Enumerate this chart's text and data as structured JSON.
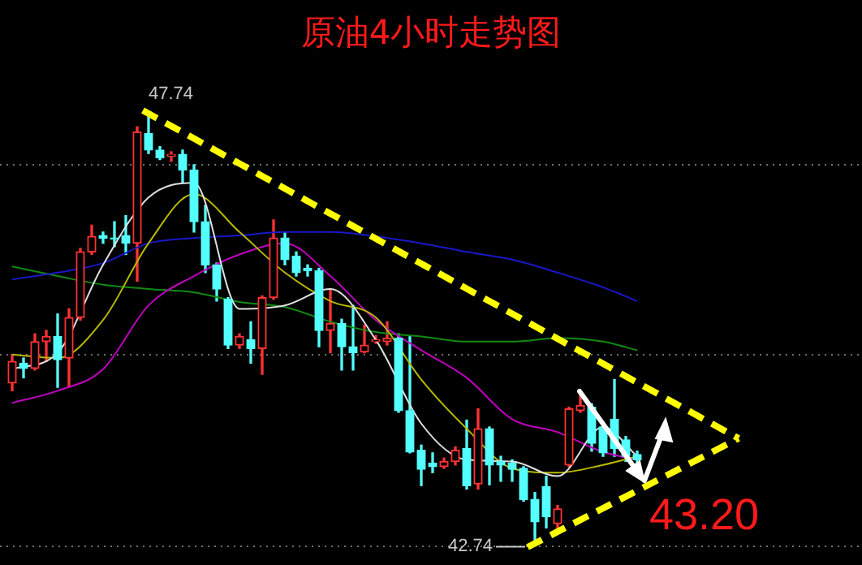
{
  "chart_data": {
    "type": "candlestick",
    "title": "原油4小时走势图",
    "categories": [
      null,
      null,
      null,
      null,
      null,
      null,
      null,
      null,
      null,
      null,
      null,
      null,
      null,
      null,
      null,
      null,
      null,
      null,
      null,
      null,
      null,
      null,
      null,
      null,
      null,
      null,
      null,
      null,
      null,
      null,
      null,
      null,
      null,
      null,
      null,
      null,
      null,
      null,
      null,
      null,
      null,
      null,
      null,
      null,
      null,
      null,
      null,
      null,
      null,
      null,
      null,
      null,
      null,
      null,
      null,
      null
    ],
    "ohlc": [
      [
        44.6,
        44.93,
        44.51,
        44.85
      ],
      [
        44.83,
        44.89,
        44.66,
        44.77
      ],
      [
        44.77,
        45.17,
        44.75,
        45.08
      ],
      [
        45.08,
        45.21,
        44.85,
        45.14
      ],
      [
        45.14,
        45.4,
        44.55,
        44.87
      ],
      [
        44.89,
        45.46,
        44.55,
        45.36
      ],
      [
        45.36,
        46.16,
        45.33,
        46.12
      ],
      [
        46.12,
        46.43,
        46.09,
        46.3
      ],
      [
        46.31,
        46.35,
        46.22,
        46.28
      ],
      [
        46.28,
        46.47,
        46.18,
        46.27
      ],
      [
        46.31,
        46.54,
        46.09,
        46.22
      ],
      [
        46.22,
        47.57,
        45.78,
        47.51
      ],
      [
        47.49,
        47.74,
        47.26,
        47.3
      ],
      [
        47.3,
        47.34,
        47.19,
        47.21
      ],
      [
        47.23,
        47.28,
        47.17,
        47.25
      ],
      [
        47.25,
        47.3,
        46.92,
        47.07
      ],
      [
        47.07,
        47.13,
        46.35,
        46.47
      ],
      [
        46.47,
        46.66,
        45.88,
        45.97
      ],
      [
        45.97,
        45.99,
        45.55,
        45.69
      ],
      [
        45.57,
        45.59,
        45.0,
        45.04
      ],
      [
        45.04,
        45.17,
        45.0,
        45.14
      ],
      [
        45.1,
        45.31,
        44.83,
        45.0
      ],
      [
        45.0,
        45.61,
        44.7,
        45.59
      ],
      [
        45.59,
        46.49,
        45.57,
        46.28
      ],
      [
        46.28,
        46.35,
        45.97,
        46.03
      ],
      [
        46.07,
        46.12,
        45.84,
        45.88
      ],
      [
        45.93,
        45.97,
        45.84,
        45.9
      ],
      [
        45.9,
        45.93,
        45.02,
        45.21
      ],
      [
        45.21,
        45.69,
        44.95,
        45.29
      ],
      [
        45.29,
        45.34,
        44.75,
        45.02
      ],
      [
        45.02,
        45.5,
        44.75,
        44.95
      ],
      [
        44.96,
        45.27,
        44.95,
        45.04
      ],
      [
        45.08,
        45.15,
        45.06,
        45.1
      ],
      [
        45.08,
        45.31,
        45.04,
        45.12
      ],
      [
        45.12,
        45.17,
        44.26,
        44.28
      ],
      [
        44.28,
        45.14,
        43.79,
        43.8
      ],
      [
        43.82,
        43.88,
        43.41,
        43.6
      ],
      [
        43.67,
        43.79,
        43.56,
        43.63
      ],
      [
        43.63,
        43.73,
        43.61,
        43.69
      ],
      [
        43.69,
        43.86,
        43.65,
        43.82
      ],
      [
        43.84,
        44.17,
        43.37,
        43.41
      ],
      [
        43.43,
        44.3,
        43.37,
        44.07
      ],
      [
        44.07,
        44.09,
        43.42,
        43.65
      ],
      [
        43.69,
        43.75,
        43.46,
        43.65
      ],
      [
        43.67,
        43.71,
        43.46,
        43.6
      ],
      [
        43.61,
        43.63,
        43.23,
        43.25
      ],
      [
        43.25,
        43.33,
        42.74,
        42.99
      ],
      [
        43.4,
        43.52,
        42.92,
        43.05
      ],
      [
        42.97,
        43.18,
        42.86,
        43.14
      ],
      [
        43.65,
        44.32,
        43.63,
        44.3
      ],
      [
        44.28,
        44.51,
        44.26,
        44.34
      ],
      [
        44.32,
        44.36,
        43.81,
        43.9
      ],
      [
        44.09,
        44.13,
        43.75,
        43.79
      ],
      [
        44.18,
        44.64,
        43.75,
        43.84
      ],
      [
        43.94,
        43.98,
        43.69,
        43.75
      ],
      [
        43.77,
        43.81,
        43.67,
        43.71
      ]
    ],
    "series": [
      {
        "type": "line",
        "color": "#e0e0e0",
        "values": [
          44.76,
          null,
          null,
          null,
          44.95,
          null,
          null,
          null,
          45.97,
          null,
          null,
          null,
          46.75,
          null,
          null,
          null,
          46.92,
          null,
          null,
          null,
          45.46,
          null,
          null,
          null,
          45.5,
          null,
          null,
          null,
          45.69,
          null,
          null,
          null,
          45.1,
          null,
          null,
          null,
          44.13,
          null,
          null,
          null,
          43.71,
          null,
          null,
          null,
          43.69,
          null,
          null,
          null,
          43.52,
          null,
          null,
          null,
          44.09,
          null,
          null,
          43.75
        ]
      },
      {
        "type": "line",
        "color": "#b8b800",
        "values": [
          44.93,
          null,
          null,
          null,
          44.89,
          null,
          null,
          null,
          45.33,
          null,
          null,
          null,
          46.22,
          null,
          null,
          null,
          46.79,
          null,
          null,
          null,
          46.35,
          null,
          null,
          null,
          45.88,
          null,
          null,
          null,
          45.55,
          null,
          null,
          null,
          45.36,
          null,
          null,
          null,
          44.64,
          null,
          null,
          null,
          44.07,
          null,
          null,
          null,
          43.61,
          null,
          null,
          null,
          43.56,
          null,
          null,
          null,
          43.65,
          null,
          null,
          43.75
        ]
      },
      {
        "type": "line",
        "color": "#c000c0",
        "values": [
          44.37,
          null,
          null,
          null,
          44.51,
          null,
          null,
          null,
          44.76,
          null,
          null,
          null,
          45.5,
          null,
          null,
          null,
          45.84,
          null,
          null,
          null,
          46.09,
          null,
          null,
          null,
          46.22,
          null,
          null,
          null,
          45.84,
          null,
          null,
          null,
          45.33,
          null,
          null,
          null,
          44.98,
          null,
          null,
          null,
          44.66,
          null,
          null,
          null,
          44.18,
          null,
          null,
          null,
          44.03,
          null,
          null,
          null,
          43.8,
          null,
          null,
          43.71
        ]
      },
      {
        "type": "line",
        "color": "#1818c8",
        "values": [
          45.8,
          null,
          null,
          null,
          45.88,
          null,
          null,
          null,
          45.99,
          null,
          null,
          null,
          46.22,
          null,
          null,
          null,
          46.28,
          null,
          null,
          null,
          46.31,
          null,
          null,
          null,
          46.35,
          null,
          null,
          null,
          46.35,
          null,
          null,
          null,
          46.3,
          null,
          null,
          null,
          46.22,
          null,
          null,
          null,
          46.12,
          null,
          null,
          null,
          46.03,
          null,
          null,
          null,
          45.88,
          null,
          null,
          null,
          45.71,
          null,
          null,
          45.55
        ]
      },
      {
        "type": "line",
        "color": "#108a10",
        "values": [
          45.95,
          null,
          null,
          null,
          45.84,
          null,
          null,
          null,
          45.74,
          null,
          null,
          null,
          45.69,
          null,
          null,
          null,
          45.65,
          null,
          null,
          null,
          45.54,
          null,
          null,
          null,
          45.48,
          null,
          null,
          null,
          45.31,
          null,
          null,
          null,
          45.19,
          null,
          null,
          null,
          45.14,
          null,
          null,
          null,
          45.08,
          null,
          null,
          null,
          45.08,
          null,
          null,
          null,
          45.12,
          null,
          null,
          null,
          45.08,
          null,
          null,
          44.98
        ]
      }
    ],
    "annotations": [
      "47.74",
      "42.74",
      "43.20"
    ],
    "yticks": [
      {
        "value": 47.14,
        "label": null
      },
      {
        "value": 44.93,
        "label": null
      },
      {
        "value": 42.72,
        "label": null
      }
    ],
    "grid": "y"
  }
}
